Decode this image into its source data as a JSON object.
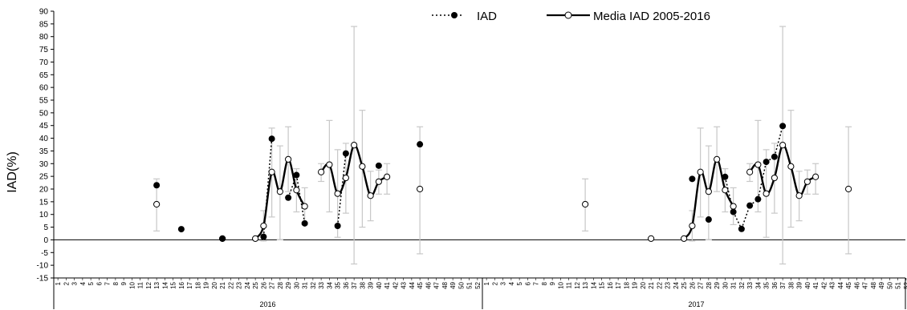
{
  "chart_data": {
    "type": "line",
    "ylabel": "IAD(%)",
    "ylim": [
      -15,
      90
    ],
    "yticks": [
      -15,
      -10,
      -5,
      0,
      5,
      10,
      15,
      20,
      25,
      30,
      35,
      40,
      45,
      50,
      55,
      60,
      65,
      70,
      75,
      80,
      85,
      90
    ],
    "years": [
      "2016",
      "2017"
    ],
    "weeks": [
      "1",
      "2",
      "3",
      "4",
      "5",
      "6",
      "7",
      "8",
      "9",
      "10",
      "11",
      "12",
      "13",
      "14",
      "15",
      "16",
      "17",
      "18",
      "19",
      "20",
      "21",
      "22",
      "23",
      "24",
      "25",
      "26",
      "27",
      "28",
      "29",
      "30",
      "31",
      "32",
      "33",
      "34",
      "35",
      "36",
      "37",
      "38",
      "39",
      "40",
      "41",
      "42",
      "43",
      "44",
      "45",
      "46",
      "47",
      "48",
      "49",
      "50",
      "51",
      "52"
    ],
    "legend": {
      "iad_label": "IAD",
      "mean_label": "Media IAD  2005-2016",
      "placement": "top-center"
    },
    "series": [
      {
        "name": "IAD",
        "style": "dotted-filled-markers",
        "color": "#000000",
        "panels": [
          [
            [
              13,
              21.5
            ],
            [
              16,
              4.2
            ],
            [
              21,
              0.5
            ],
            [
              26,
              1.2
            ],
            [
              27,
              39.8
            ],
            [
              29,
              16.6
            ],
            [
              30,
              25.5
            ],
            [
              31,
              6.5
            ],
            [
              35,
              5.5
            ],
            [
              36,
              34
            ],
            [
              40,
              29.2
            ],
            [
              45,
              37.6
            ]
          ],
          [
            [
              26,
              24
            ],
            [
              28,
              8
            ],
            [
              30,
              24.8
            ],
            [
              31,
              11
            ],
            [
              32,
              4.3
            ],
            [
              33,
              13.5
            ],
            [
              34,
              16
            ],
            [
              35,
              30.7
            ],
            [
              36,
              32.7
            ],
            [
              37,
              44.8
            ]
          ]
        ]
      },
      {
        "name": "Media IAD  2005-2016",
        "style": "solid-open-markers",
        "color": "#000000",
        "points": [
          [
            13,
            14
          ],
          [
            21,
            0.5
          ],
          [
            25,
            0.5
          ],
          [
            26,
            5.5
          ],
          [
            27,
            26.7
          ],
          [
            28,
            19
          ],
          [
            29,
            31.7
          ],
          [
            30,
            19.6
          ],
          [
            31,
            13.2
          ],
          [
            33,
            26.7
          ],
          [
            34,
            29.6
          ],
          [
            35,
            18.2
          ],
          [
            36,
            24.4
          ],
          [
            37,
            37.3
          ],
          [
            38,
            28.9
          ],
          [
            39,
            17.4
          ],
          [
            40,
            22.9
          ],
          [
            41,
            24.8
          ],
          [
            45,
            20
          ]
        ],
        "segments": [
          [
            25,
            31
          ],
          [
            33,
            41
          ]
        ],
        "error_bars": [
          [
            13,
            3.5,
            24
          ],
          [
            26,
            -0.5,
            11.5
          ],
          [
            27,
            9,
            44
          ],
          [
            28,
            0,
            37
          ],
          [
            29,
            19,
            44.5
          ],
          [
            30,
            11,
            28
          ],
          [
            31,
            6,
            20.5
          ],
          [
            33,
            23,
            30
          ],
          [
            34,
            11,
            47
          ],
          [
            35,
            1,
            35.5
          ],
          [
            36,
            10.5,
            38
          ],
          [
            37,
            -9.5,
            84
          ],
          [
            38,
            5,
            51
          ],
          [
            39,
            7.5,
            27
          ],
          [
            40,
            18,
            27.5
          ],
          [
            41,
            18,
            30
          ],
          [
            45,
            -5.5,
            44.5
          ]
        ],
        "error_bar_color": "#c8c8c8"
      }
    ],
    "grid": false
  }
}
